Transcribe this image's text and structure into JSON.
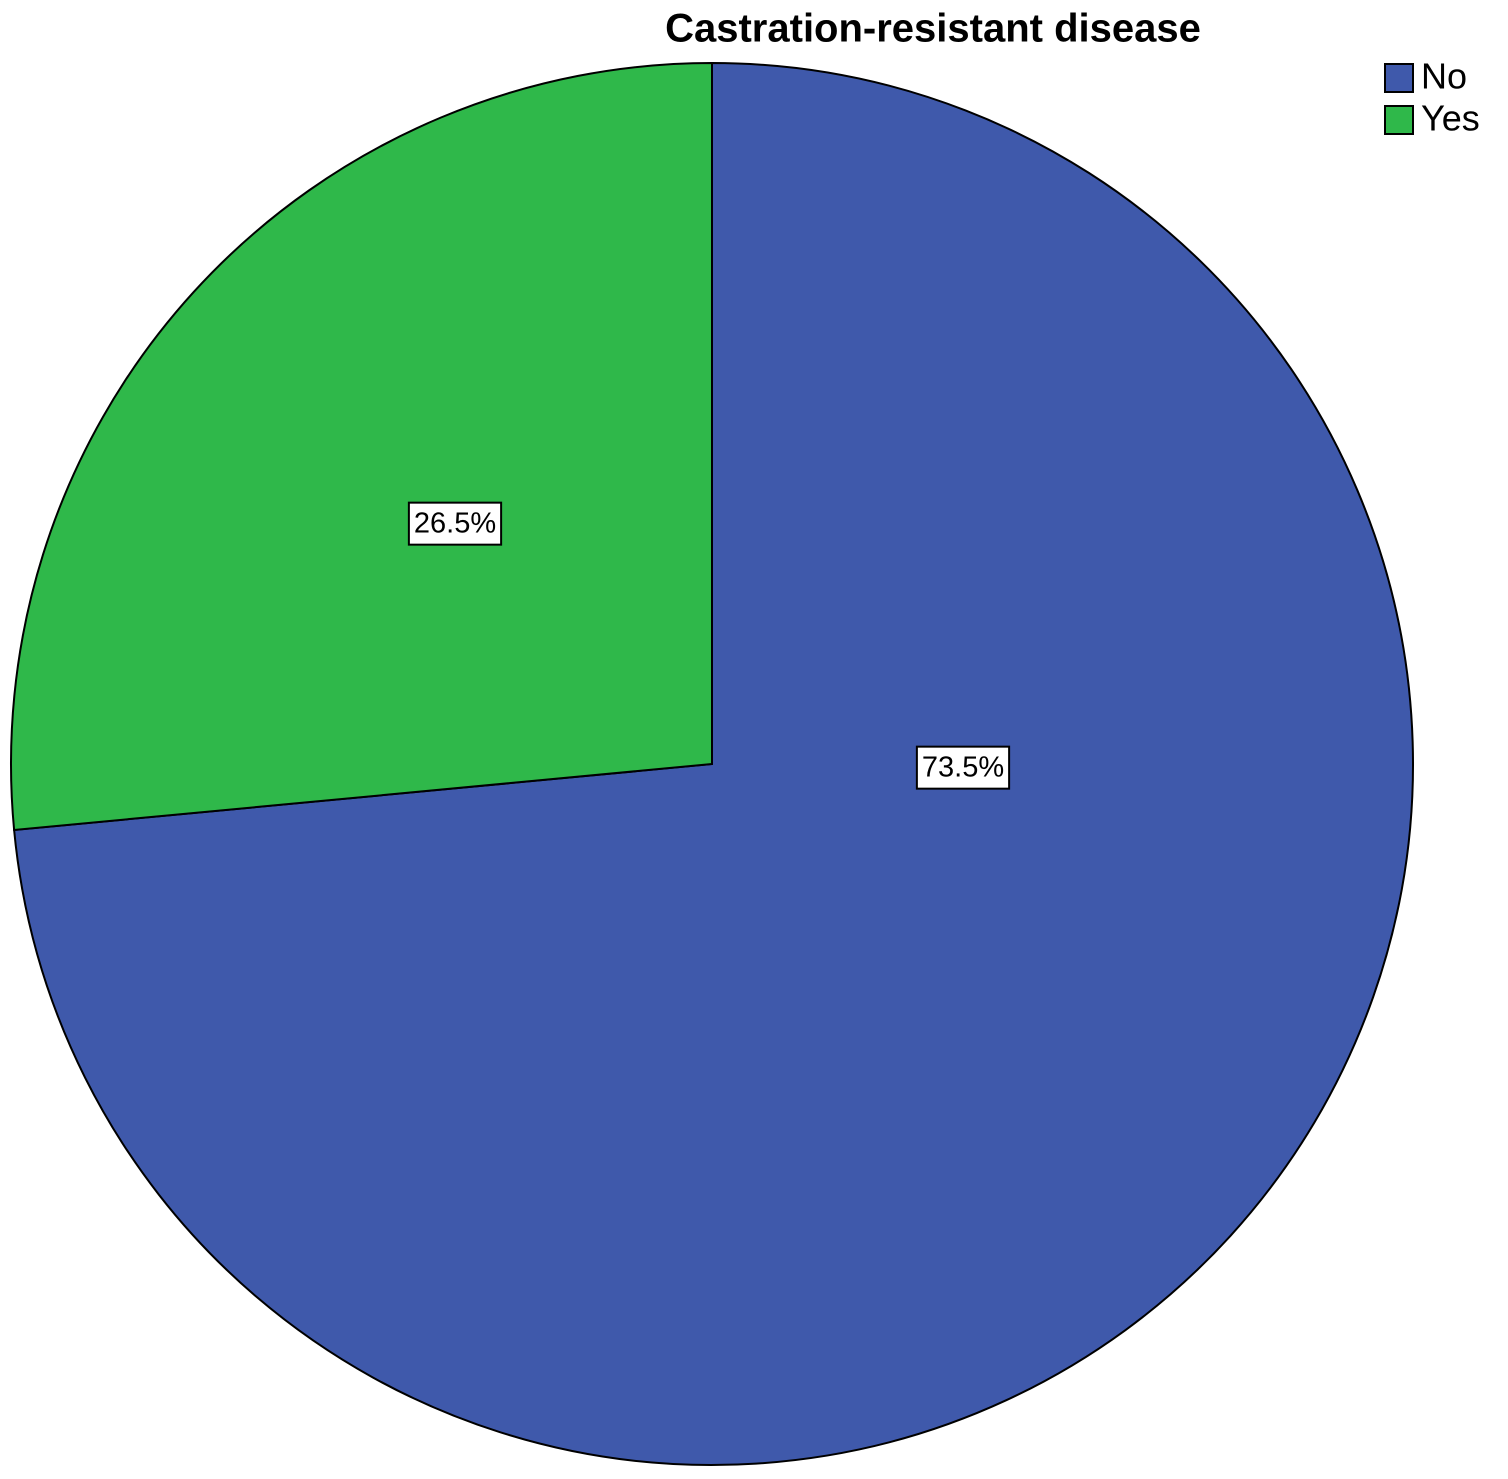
{
  "chart_data": {
    "type": "pie",
    "title": "Castration-resistant disease",
    "categories": [
      "No",
      "Yes"
    ],
    "values": [
      73.5,
      26.5
    ],
    "value_labels": [
      "73.5%",
      "26.5%"
    ],
    "colors": [
      "#3f59ab",
      "#2fb84a"
    ],
    "legend": "top-right"
  }
}
